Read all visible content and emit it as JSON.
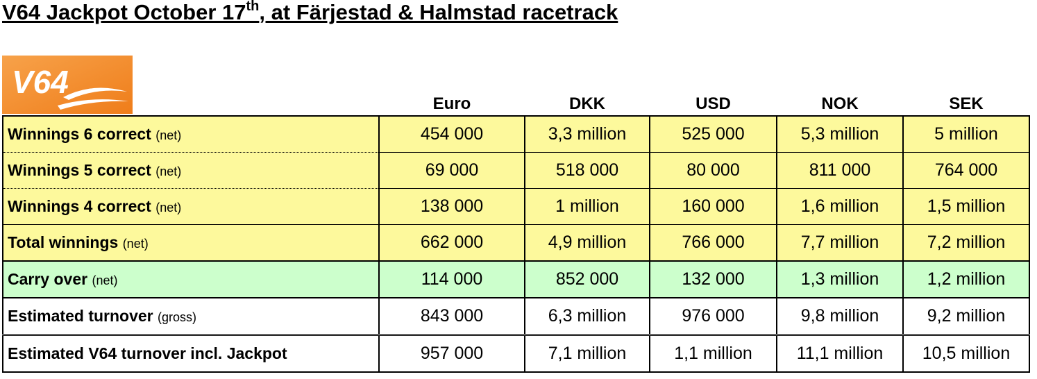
{
  "header": {
    "title_main": "V64 Jackpot October 17",
    "title_sup": "th",
    "title_rest": ", at Färjestad & Halmstad racetrack"
  },
  "logo": "V64",
  "table": {
    "columns": [
      "Euro",
      "DKK",
      "USD",
      "NOK",
      "SEK"
    ],
    "rows": [
      {
        "label": "Winnings 6 correct",
        "note": "(net)",
        "values": [
          "454 000",
          "3,3 million",
          "525 000",
          "5,3 million",
          "5 million"
        ]
      },
      {
        "label": "Winnings 5 correct",
        "note": "(net)",
        "values": [
          "69 000",
          "518 000",
          "80 000",
          "811 000",
          "764 000"
        ]
      },
      {
        "label": "Winnings 4 correct",
        "note": "(net)",
        "values": [
          "138 000",
          "1 million",
          "160 000",
          "1,6 million",
          "1,5 million"
        ]
      },
      {
        "label": "Total winnings",
        "note": "(net)",
        "values": [
          "662 000",
          "4,9 million",
          "766 000",
          "7,7 million",
          "7,2 million"
        ]
      },
      {
        "label": "Carry over",
        "note": "(net)",
        "values": [
          "114 000",
          "852 000",
          "132 000",
          "1,3 million",
          "1,2 million"
        ]
      },
      {
        "label": "Estimated turnover",
        "note": "(gross)",
        "values": [
          "843 000",
          "6,3 million",
          "976 000",
          "9,8 million",
          "9,2 million"
        ]
      },
      {
        "label": "Estimated V64 turnover incl. Jackpot",
        "values": [
          "957 000",
          "7,1 million",
          "1,1 million",
          "11,1 million",
          "10,5 million"
        ]
      }
    ]
  }
}
